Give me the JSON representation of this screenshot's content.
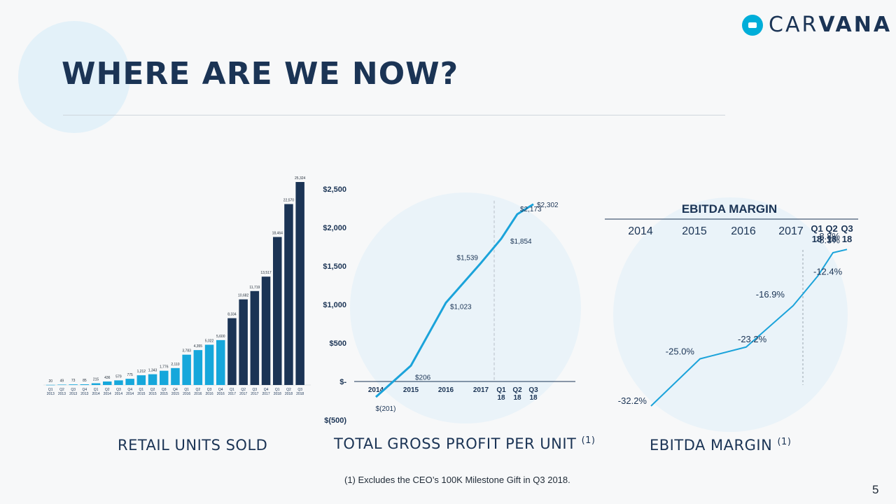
{
  "slide": {
    "title": "WHERE ARE WE NOW?",
    "logo": {
      "prefix": "CAR",
      "suffix": "VANA"
    },
    "footnote": "(1) Excludes the CEO’s 100K Milestone Gift in Q3 2018.",
    "page_number": "5"
  },
  "captions": {
    "units": "RETAIL UNITS SOLD",
    "gpu": "TOTAL GROSS PROFIT PER UNIT",
    "gpu_note": "(1)",
    "ebitda": "EBITDA MARGIN",
    "ebitda_note": "(1)"
  },
  "colors": {
    "light_bar": "#16a7db",
    "dark_bar": "#1b3455",
    "line": "#1ba3da",
    "text": "#1b3455"
  },
  "chart_data": [
    {
      "type": "bar",
      "title": "RETAIL UNITS SOLD",
      "categories": [
        [
          "Q1",
          "2013"
        ],
        [
          "Q2",
          "2013"
        ],
        [
          "Q3",
          "2013"
        ],
        [
          "Q4",
          "2013"
        ],
        [
          "Q1",
          "2014"
        ],
        [
          "Q2",
          "2014"
        ],
        [
          "Q3",
          "2014"
        ],
        [
          "Q4",
          "2014"
        ],
        [
          "Q1",
          "2015"
        ],
        [
          "Q2",
          "2015"
        ],
        [
          "Q3",
          "2015"
        ],
        [
          "Q4",
          "2015"
        ],
        [
          "Q1",
          "2016"
        ],
        [
          "Q2",
          "2016"
        ],
        [
          "Q3",
          "2016"
        ],
        [
          "Q4",
          "2016"
        ],
        [
          "Q1",
          "2017"
        ],
        [
          "Q2",
          "2017"
        ],
        [
          "Q3",
          "2017"
        ],
        [
          "Q4",
          "2017"
        ],
        [
          "Q1",
          "2018"
        ],
        [
          "Q2",
          "2018"
        ],
        [
          "Q3",
          "2018"
        ]
      ],
      "values": [
        20,
        49,
        73,
        85,
        215,
        436,
        579,
        775,
        1212,
        1343,
        1776,
        2110,
        3783,
        4355,
        5022,
        5600,
        8334,
        10682,
        11719,
        13517,
        18464,
        22570,
        25324
      ],
      "data_labels": [
        "20",
        "49",
        "73",
        "85",
        "215",
        "436",
        "579",
        "775",
        "1,212",
        "1,343",
        "1,776",
        "2,110",
        "3,783",
        "4,355",
        "5,022",
        "5,600",
        "8,334",
        "10,682",
        "11,719",
        "13,517",
        "18,464",
        "22,570",
        "25,324"
      ],
      "series_color": [
        "light",
        "light",
        "light",
        "light",
        "light",
        "light",
        "light",
        "light",
        "light",
        "light",
        "light",
        "light",
        "light",
        "light",
        "light",
        "light",
        "dark",
        "dark",
        "dark",
        "dark",
        "dark",
        "dark",
        "dark"
      ],
      "ylim": [
        0,
        25324
      ]
    },
    {
      "type": "line",
      "title": "TOTAL GROSS PROFIT PER UNIT",
      "x_labels": [
        [
          "2014"
        ],
        [
          "2015"
        ],
        [
          "2016"
        ],
        [
          "2017"
        ],
        [
          "Q1",
          "18"
        ],
        [
          "Q2",
          "18"
        ],
        [
          "Q3",
          "18"
        ]
      ],
      "values": [
        -201,
        206,
        1023,
        1539,
        1854,
        2173,
        2302
      ],
      "data_labels": [
        "$(201)",
        "$206",
        "$1,023",
        "$1,539",
        "$1,854",
        "$2,173",
        "$2,302"
      ],
      "yticks": [
        2500,
        2000,
        1500,
        1000,
        500,
        0,
        -500
      ],
      "ytick_labels": [
        "$2,500",
        "$2,000",
        "$1,500",
        "$1,000",
        "$500",
        "$-",
        "$(500)"
      ],
      "ylim": [
        -500,
        2500
      ]
    },
    {
      "type": "line",
      "title": "EBITDA MARGIN",
      "header": "EBITDA MARGIN",
      "x_labels": [
        [
          "2014"
        ],
        [
          "2015"
        ],
        [
          "2016"
        ],
        [
          "2017"
        ],
        [
          "Q1",
          "18"
        ],
        [
          "Q2",
          "18"
        ],
        [
          "Q3",
          "18"
        ]
      ],
      "values": [
        -32.2,
        -25.0,
        -23.2,
        -16.9,
        -12.4,
        -8.8,
        -8.3
      ],
      "data_labels": [
        "-32.2%",
        "-25.0%",
        "-23.2%",
        "-16.9%",
        "-12.4%",
        "-8.8%",
        "-8.3%"
      ],
      "ylim": [
        -33,
        -8
      ]
    }
  ]
}
